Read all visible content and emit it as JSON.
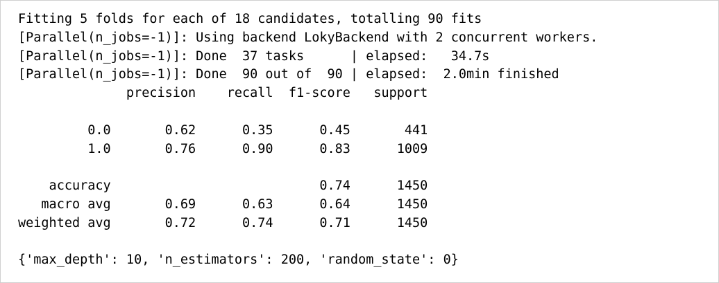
{
  "output": {
    "lines": [
      "Fitting 5 folds for each of 18 candidates, totalling 90 fits",
      "[Parallel(n_jobs=-1)]: Using backend LokyBackend with 2 concurrent workers.",
      "[Parallel(n_jobs=-1)]: Done  37 tasks      | elapsed:   34.7s",
      "[Parallel(n_jobs=-1)]: Done  90 out of  90 | elapsed:  2.0min finished",
      "              precision    recall  f1-score   support",
      "",
      "         0.0       0.62      0.35      0.45       441",
      "         1.0       0.76      0.90      0.83      1009",
      "",
      "    accuracy                           0.74      1450",
      "   macro avg       0.69      0.63      0.64      1450",
      "weighted avg       0.72      0.74      0.71      1450",
      "",
      "{'max_depth': 10, 'n_estimators': 200, 'random_state': 0}"
    ]
  }
}
